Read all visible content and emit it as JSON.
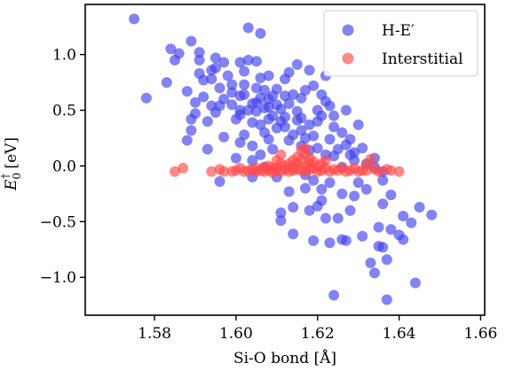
{
  "chart_data": {
    "type": "scatter",
    "xlabel": "Si-O bond [Å]",
    "ylabel": "E0† [eV]",
    "ylabel_parts": {
      "base": "E",
      "sub": "0",
      "sup": "†",
      "unit": " [eV]"
    },
    "xlim": [
      1.563,
      1.661
    ],
    "ylim": [
      -1.34,
      1.45
    ],
    "xticks": [
      1.58,
      1.6,
      1.62,
      1.64,
      1.66
    ],
    "xtick_labels": [
      "1.58",
      "1.60",
      "1.62",
      "1.64",
      "1.66"
    ],
    "yticks": [
      -1.0,
      -0.5,
      0.0,
      0.5,
      1.0
    ],
    "ytick_labels": [
      "−1.0",
      "−0.5",
      "0.0",
      "0.5",
      "1.0"
    ],
    "grid": false,
    "legend_position": "top-right",
    "series": [
      {
        "name": "H-E′",
        "color": "#4040ee",
        "alpha": 0.65,
        "points": [
          [
            1.575,
            1.32
          ],
          [
            1.578,
            0.61
          ],
          [
            1.583,
            0.75
          ],
          [
            1.584,
            1.05
          ],
          [
            1.585,
            0.95
          ],
          [
            1.586,
            1.01
          ],
          [
            1.588,
            0.67
          ],
          [
            1.588,
            0.23
          ],
          [
            1.589,
            0.42
          ],
          [
            1.589,
            0.32
          ],
          [
            1.589,
            1.12
          ],
          [
            1.59,
            0.47
          ],
          [
            1.59,
            0.57
          ],
          [
            1.591,
            0.83
          ],
          [
            1.591,
            0.95
          ],
          [
            1.591,
            1.02
          ],
          [
            1.592,
            0.77
          ],
          [
            1.592,
            0.62
          ],
          [
            1.593,
            0.4
          ],
          [
            1.593,
            0.15
          ],
          [
            1.594,
            0.78
          ],
          [
            1.594,
            0.86
          ],
          [
            1.594,
            0.54
          ],
          [
            1.595,
            0.97
          ],
          [
            1.595,
            0.88
          ],
          [
            1.595,
            0.48
          ],
          [
            1.596,
            -0.14
          ],
          [
            1.596,
            0.7
          ],
          [
            1.596,
            0.54
          ],
          [
            1.597,
            0.93
          ],
          [
            1.597,
            0.6
          ],
          [
            1.597,
            0.26
          ],
          [
            1.598,
            0.81
          ],
          [
            1.599,
            0.73
          ],
          [
            1.599,
            0.66
          ],
          [
            1.599,
            0.55
          ],
          [
            1.6,
            0.42
          ],
          [
            1.6,
            0.07
          ],
          [
            1.601,
            0.93
          ],
          [
            1.601,
            0.5
          ],
          [
            1.601,
            0.46
          ],
          [
            1.601,
            0.21
          ],
          [
            1.601,
            0.63
          ],
          [
            1.602,
            0.73
          ],
          [
            1.602,
            0.85
          ],
          [
            1.602,
            0.64
          ],
          [
            1.602,
            0.28
          ],
          [
            1.603,
            1.24
          ],
          [
            1.603,
            0.95
          ],
          [
            1.603,
            0.5
          ],
          [
            1.604,
            0.39
          ],
          [
            1.604,
            0.56
          ],
          [
            1.604,
            0.18
          ],
          [
            1.604,
            -0.1
          ],
          [
            1.604,
            0.05
          ],
          [
            1.605,
            0.49
          ],
          [
            1.605,
            0.57
          ],
          [
            1.605,
            0.94
          ],
          [
            1.605,
            0.7
          ],
          [
            1.606,
            1.19
          ],
          [
            1.606,
            0.61
          ],
          [
            1.606,
            0.79
          ],
          [
            1.606,
            0.37
          ],
          [
            1.606,
            0.1
          ],
          [
            1.607,
            0.52
          ],
          [
            1.607,
            0.68
          ],
          [
            1.607,
            0.3
          ],
          [
            1.607,
            -0.01
          ],
          [
            1.608,
            0.42
          ],
          [
            1.608,
            0.6
          ],
          [
            1.608,
            0.53
          ],
          [
            1.608,
            0.81
          ],
          [
            1.608,
            0.24
          ],
          [
            1.609,
            0.15
          ],
          [
            1.609,
            0.45
          ],
          [
            1.609,
            0.63
          ],
          [
            1.61,
            0.34
          ],
          [
            1.61,
            0.55
          ],
          [
            1.61,
            0.69
          ],
          [
            1.61,
            -0.1
          ],
          [
            1.611,
            0.4
          ],
          [
            1.611,
            0.51
          ],
          [
            1.611,
            -0.42
          ],
          [
            1.611,
            -0.49
          ],
          [
            1.612,
            0.35
          ],
          [
            1.612,
            0.78
          ],
          [
            1.612,
            0.63
          ],
          [
            1.612,
            0.44
          ],
          [
            1.613,
            0.56
          ],
          [
            1.613,
            0.84
          ],
          [
            1.613,
            0.23
          ],
          [
            1.613,
            -0.23
          ],
          [
            1.614,
            0.64
          ],
          [
            1.614,
            0.28
          ],
          [
            1.614,
            -0.61
          ],
          [
            1.614,
            -0.37
          ],
          [
            1.615,
            0.49
          ],
          [
            1.615,
            0.91
          ],
          [
            1.615,
            0.41
          ],
          [
            1.616,
            0.43
          ],
          [
            1.616,
            0.32
          ],
          [
            1.616,
            0.18
          ],
          [
            1.616,
            0.61
          ],
          [
            1.617,
            0.68
          ],
          [
            1.617,
            0.25
          ],
          [
            1.617,
            -0.2
          ],
          [
            1.617,
            -0.08
          ],
          [
            1.618,
            0.86
          ],
          [
            1.618,
            0.37
          ],
          [
            1.618,
            0.14
          ],
          [
            1.618,
            -0.4
          ],
          [
            1.619,
            0.72
          ],
          [
            1.619,
            0.27
          ],
          [
            1.619,
            -0.67
          ],
          [
            1.619,
            -0.13
          ],
          [
            1.62,
            0.5
          ],
          [
            1.62,
            0.4
          ],
          [
            1.62,
            0.16
          ],
          [
            1.62,
            -0.36
          ],
          [
            1.621,
            0.64
          ],
          [
            1.621,
            0.45
          ],
          [
            1.621,
            -0.21
          ],
          [
            1.621,
            -0.31
          ],
          [
            1.622,
            0.81
          ],
          [
            1.622,
            0.58
          ],
          [
            1.622,
            0.1
          ],
          [
            1.622,
            -0.47
          ],
          [
            1.623,
            0.24
          ],
          [
            1.623,
            0.54
          ],
          [
            1.623,
            -0.69
          ],
          [
            1.623,
            -0.15
          ],
          [
            1.624,
            0.45
          ],
          [
            1.624,
            0.35
          ],
          [
            1.624,
            -1.16
          ],
          [
            1.624,
            0.09
          ],
          [
            1.625,
            0.15
          ],
          [
            1.625,
            -0.47
          ],
          [
            1.626,
            0.3
          ],
          [
            1.626,
            -0.01
          ],
          [
            1.626,
            -0.25
          ],
          [
            1.626,
            -0.66
          ],
          [
            1.627,
            0.5
          ],
          [
            1.627,
            0.19
          ],
          [
            1.627,
            -0.67
          ],
          [
            1.628,
            0.24
          ],
          [
            1.628,
            0.1
          ],
          [
            1.628,
            -0.4
          ],
          [
            1.629,
            0.05
          ],
          [
            1.629,
            0.12
          ],
          [
            1.629,
            -0.27
          ],
          [
            1.63,
            0.37
          ],
          [
            1.63,
            -0.15
          ],
          [
            1.631,
            0.16
          ],
          [
            1.631,
            -0.63
          ],
          [
            1.632,
            -0.21
          ],
          [
            1.632,
            0.02
          ],
          [
            1.633,
            -0.87
          ],
          [
            1.634,
            0.07
          ],
          [
            1.634,
            -0.96
          ],
          [
            1.634,
            -0.01
          ],
          [
            1.635,
            -0.55
          ],
          [
            1.635,
            -0.72
          ],
          [
            1.636,
            -0.13
          ],
          [
            1.636,
            -0.73
          ],
          [
            1.636,
            -0.34
          ],
          [
            1.636,
            -0.05
          ],
          [
            1.637,
            -1.2
          ],
          [
            1.637,
            -0.84
          ],
          [
            1.638,
            -0.57
          ],
          [
            1.638,
            -0.26
          ],
          [
            1.64,
            -0.62
          ],
          [
            1.641,
            -0.45
          ],
          [
            1.641,
            -0.66
          ],
          [
            1.643,
            -0.51
          ],
          [
            1.644,
            -1.05
          ],
          [
            1.645,
            -0.37
          ],
          [
            1.648,
            -0.44
          ]
        ]
      },
      {
        "name": "Interstitial",
        "color": "#ff4a4a",
        "alpha": 0.65,
        "points": [
          [
            1.585,
            -0.05
          ],
          [
            1.587,
            -0.02
          ],
          [
            1.594,
            -0.05
          ],
          [
            1.596,
            -0.03
          ],
          [
            1.597,
            -0.05
          ],
          [
            1.599,
            -0.05
          ],
          [
            1.6,
            -0.04
          ],
          [
            1.601,
            -0.02
          ],
          [
            1.602,
            -0.05
          ],
          [
            1.603,
            -0.04
          ],
          [
            1.604,
            -0.03
          ],
          [
            1.605,
            -0.02
          ],
          [
            1.605,
            -0.05
          ],
          [
            1.606,
            -0.04
          ],
          [
            1.607,
            -0.01
          ],
          [
            1.607,
            -0.05
          ],
          [
            1.608,
            0.0
          ],
          [
            1.608,
            -0.04
          ],
          [
            1.609,
            -0.06
          ],
          [
            1.609,
            -0.02
          ],
          [
            1.61,
            0.05
          ],
          [
            1.61,
            -0.04
          ],
          [
            1.61,
            -0.01
          ],
          [
            1.611,
            0.1
          ],
          [
            1.611,
            0.02
          ],
          [
            1.611,
            -0.05
          ],
          [
            1.612,
            -0.03
          ],
          [
            1.612,
            0.0
          ],
          [
            1.613,
            0.02
          ],
          [
            1.613,
            -0.05
          ],
          [
            1.614,
            0.05
          ],
          [
            1.614,
            -0.01
          ],
          [
            1.614,
            -0.04
          ],
          [
            1.615,
            0.08
          ],
          [
            1.615,
            0.02
          ],
          [
            1.615,
            -0.03
          ],
          [
            1.616,
            0.14
          ],
          [
            1.616,
            0.05
          ],
          [
            1.616,
            -0.04
          ],
          [
            1.617,
            0.16
          ],
          [
            1.617,
            0.1
          ],
          [
            1.617,
            0.0
          ],
          [
            1.617,
            -0.05
          ],
          [
            1.618,
            0.07
          ],
          [
            1.618,
            0.02
          ],
          [
            1.618,
            -0.03
          ],
          [
            1.619,
            -0.02
          ],
          [
            1.619,
            0.04
          ],
          [
            1.62,
            0.0
          ],
          [
            1.62,
            -0.05
          ],
          [
            1.621,
            0.02
          ],
          [
            1.621,
            -0.04
          ],
          [
            1.622,
            0.05
          ],
          [
            1.622,
            -0.02
          ],
          [
            1.623,
            -0.05
          ],
          [
            1.624,
            -0.03
          ],
          [
            1.625,
            -0.04
          ],
          [
            1.626,
            -0.02
          ],
          [
            1.627,
            -0.05
          ],
          [
            1.628,
            -0.04
          ],
          [
            1.629,
            -0.02
          ],
          [
            1.63,
            -0.05
          ],
          [
            1.631,
            -0.04
          ],
          [
            1.632,
            0.01
          ],
          [
            1.632,
            -0.04
          ],
          [
            1.633,
            0.06
          ],
          [
            1.634,
            -0.03
          ],
          [
            1.635,
            -0.05
          ],
          [
            1.637,
            -0.03
          ],
          [
            1.638,
            -0.04
          ],
          [
            1.64,
            -0.05
          ]
        ]
      }
    ]
  }
}
